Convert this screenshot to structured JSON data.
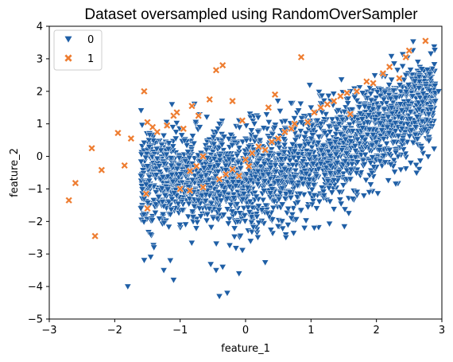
{
  "chart_data": {
    "type": "scatter",
    "title": "Dataset oversampled using RandomOverSampler",
    "xlabel": "feature_1",
    "ylabel": "feature_2",
    "xlim": [
      -3,
      3
    ],
    "ylim": [
      -5,
      4
    ],
    "xticks": [
      -3,
      -2,
      -1,
      0,
      1,
      2,
      3
    ],
    "yticks": [
      -5,
      -4,
      -3,
      -2,
      -1,
      0,
      1,
      2,
      3,
      4
    ],
    "grid": false,
    "legend_position": "upper-left",
    "series": [
      {
        "name": "0",
        "marker": "triangle-down",
        "color": "#1f5fa6",
        "dense_cloud": {
          "description_only": false,
          "count": 2600,
          "x_range": [
            -1.6,
            2.9
          ]
        },
        "values": [
          [
            -1.8,
            -4.0
          ],
          [
            -1.25,
            -3.5
          ],
          [
            -1.1,
            -3.8
          ],
          [
            -0.45,
            -3.5
          ],
          [
            -0.35,
            -3.4
          ],
          [
            -0.4,
            -4.3
          ],
          [
            -0.28,
            -4.2
          ],
          [
            -0.1,
            -3.6
          ],
          [
            -1.55,
            -1.3
          ],
          [
            -1.6,
            -1.6
          ],
          [
            -1.45,
            -2.4
          ],
          [
            -1.4,
            -2.8
          ],
          [
            -1.15,
            -3.2
          ],
          [
            2.9,
            1.7
          ],
          [
            2.95,
            2.0
          ],
          [
            2.65,
            2.1
          ],
          [
            2.45,
            2.5
          ],
          [
            2.3,
            1.8
          ],
          [
            1.9,
            2.1
          ],
          [
            1.6,
            2.0
          ],
          [
            2.8,
            1.3
          ],
          [
            2.6,
            0.9
          ],
          [
            2.2,
            0.2
          ],
          [
            1.6,
            -0.7
          ],
          [
            1.2,
            -1.2
          ],
          [
            0.7,
            -1.9
          ],
          [
            0.9,
            -2.2
          ],
          [
            -0.7,
            0.9
          ],
          [
            -0.4,
            1.0
          ],
          [
            -0.1,
            1.1
          ],
          [
            0.05,
            0.3
          ],
          [
            -1.6,
            -0.6
          ],
          [
            -1.5,
            -0.3
          ],
          [
            1.0,
            1.5
          ],
          [
            1.3,
            1.7
          ]
        ]
      },
      {
        "name": "1",
        "marker": "x-filled",
        "color": "#ee7d31",
        "values": [
          [
            -2.7,
            -1.35
          ],
          [
            -2.6,
            -0.82
          ],
          [
            -2.3,
            -2.45
          ],
          [
            -2.35,
            0.25
          ],
          [
            -2.2,
            -0.42
          ],
          [
            -1.95,
            0.72
          ],
          [
            -1.85,
            -0.28
          ],
          [
            -1.75,
            0.55
          ],
          [
            -1.55,
            2.0
          ],
          [
            -1.5,
            1.05
          ],
          [
            -1.42,
            0.9
          ],
          [
            -1.35,
            0.75
          ],
          [
            -1.2,
            0.95
          ],
          [
            -1.1,
            1.25
          ],
          [
            -1.05,
            1.35
          ],
          [
            -0.95,
            0.85
          ],
          [
            -0.82,
            1.55
          ],
          [
            -0.72,
            1.25
          ],
          [
            -0.65,
            0.0
          ],
          [
            -0.55,
            1.75
          ],
          [
            -0.45,
            2.65
          ],
          [
            -0.35,
            2.8
          ],
          [
            -0.2,
            1.7
          ],
          [
            -0.05,
            1.1
          ],
          [
            -0.85,
            -0.45
          ],
          [
            -0.75,
            -0.3
          ],
          [
            -1.0,
            -1.0
          ],
          [
            -0.85,
            -1.05
          ],
          [
            -0.65,
            -0.95
          ],
          [
            -0.4,
            -0.7
          ],
          [
            -0.3,
            -0.55
          ],
          [
            -0.2,
            -0.4
          ],
          [
            -0.1,
            -0.6
          ],
          [
            0.0,
            -0.1
          ],
          [
            0.1,
            0.1
          ],
          [
            0.2,
            0.3
          ],
          [
            0.3,
            0.2
          ],
          [
            0.4,
            0.45
          ],
          [
            0.5,
            0.55
          ],
          [
            0.6,
            0.75
          ],
          [
            0.7,
            0.85
          ],
          [
            0.75,
            1.0
          ],
          [
            0.85,
            3.05
          ],
          [
            0.35,
            1.5
          ],
          [
            0.45,
            1.9
          ],
          [
            0.95,
            1.05
          ],
          [
            1.05,
            1.35
          ],
          [
            1.15,
            1.5
          ],
          [
            1.25,
            1.6
          ],
          [
            1.35,
            1.7
          ],
          [
            1.45,
            1.85
          ],
          [
            1.55,
            1.95
          ],
          [
            1.6,
            1.3
          ],
          [
            1.85,
            2.3
          ],
          [
            1.95,
            2.25
          ],
          [
            2.1,
            2.55
          ],
          [
            2.2,
            2.75
          ],
          [
            2.35,
            2.4
          ],
          [
            2.45,
            3.05
          ],
          [
            2.5,
            3.25
          ],
          [
            2.75,
            3.55
          ],
          [
            -1.5,
            -1.6
          ],
          [
            -1.52,
            -1.15
          ],
          [
            1.7,
            2.0
          ],
          [
            0.05,
            -0.3
          ]
        ]
      }
    ]
  }
}
